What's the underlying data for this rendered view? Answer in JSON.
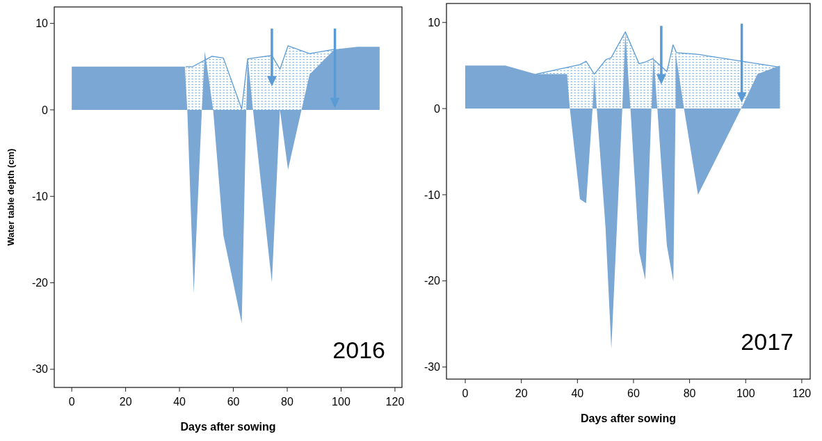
{
  "chart_data": [
    {
      "type": "area",
      "xlabel": "Days after sowing",
      "ylabel": "Water table depth (cm)",
      "annotations": [
        "2016"
      ],
      "xlim": [
        -6.5,
        122.6
      ],
      "ylim": [
        -32.1,
        11.9
      ],
      "xticks": [
        0,
        20,
        40,
        60,
        80,
        100,
        120
      ],
      "yticks": [
        -30,
        -20,
        -10,
        0,
        10
      ],
      "grid": false,
      "series": [
        {
          "color": "#5b9bd5",
          "x": [
            42.3,
            44.9,
            52.1,
            56.3,
            63.1,
            65.3,
            74.3,
            77.3,
            80.3,
            88.3,
            97.5
          ],
          "values": [
            5.0,
            5.0,
            6.2,
            6.0,
            0.1,
            5.9,
            6.3,
            4.7,
            7.4,
            6.5,
            7.0
          ]
        },
        {
          "color": "#7ba7d4",
          "x": [
            0,
            42.0,
            42.9,
            45.3,
            48.3,
            49.4,
            52.5,
            56.3,
            63.1,
            64.8,
            65.3,
            67.3,
            74.3,
            77.3,
            80.3,
            85.3,
            88.3,
            97.5,
            106.2,
            114.3
          ],
          "values": [
            5.0,
            5.0,
            0,
            -21.2,
            0,
            6.8,
            0,
            -14.5,
            -24.7,
            0,
            6.1,
            0,
            -20.0,
            0,
            -6.9,
            0,
            4.1,
            7.0,
            7.3,
            7.3
          ]
        }
      ]
    },
    {
      "type": "area",
      "xlabel": "Days after sowing",
      "annotations": [
        "2017"
      ],
      "xlim": [
        -6.7,
        123.0
      ],
      "ylim": [
        -31.4,
        12.2
      ],
      "xticks": [
        0,
        20,
        40,
        60,
        80,
        100,
        120
      ],
      "yticks": [
        -30,
        -20,
        -10,
        0,
        10
      ],
      "grid": false,
      "series": [
        {
          "color": "#5b9bd5",
          "x": [
            25.2,
            40.9,
            43.1,
            46.0,
            50.2,
            52.0,
            57.1,
            62.0,
            64.2,
            66.8,
            71.9,
            74.1,
            75.3,
            83.0,
            98.4,
            112.2
          ],
          "values": [
            4.0,
            5.1,
            5.5,
            4.0,
            5.7,
            5.9,
            8.9,
            5.2,
            5.4,
            5.8,
            4.3,
            7.4,
            6.5,
            6.3,
            5.5,
            4.8
          ]
        },
        {
          "color": "#7ba7d4",
          "x": [
            0,
            14.3,
            25.2,
            36.3,
            37.3,
            40.9,
            43.1,
            45.4,
            46.0,
            46.9,
            50.0,
            52.1,
            56.0,
            57.1,
            58.9,
            62.0,
            64.2,
            66.4,
            67.1,
            68.5,
            71.9,
            74.2,
            75.0,
            75.0,
            78.0,
            83.0,
            98.4,
            104.2,
            112.2
          ],
          "values": [
            5.0,
            5.0,
            4.0,
            4.0,
            0,
            -10.5,
            -11.0,
            0,
            3.9,
            0,
            -13.7,
            -27.9,
            0,
            8.9,
            0,
            -16.6,
            -19.9,
            0,
            6.3,
            0,
            -15.9,
            -20.1,
            0,
            6.5,
            0,
            -10.0,
            0,
            4.0,
            5.0
          ]
        }
      ]
    }
  ]
}
